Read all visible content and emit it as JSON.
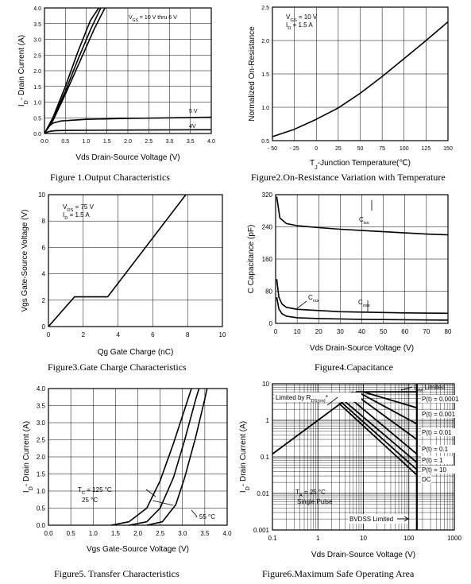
{
  "captions": {
    "f1": "Figure 1.Output Characteristics",
    "f2": "Figure2.On-Resistance Variation with Temperature",
    "f3": "Figure3.Gate Charge Characteristics",
    "f4": "Figure4.Capacitance",
    "f5": "Figure5. Transfer Characteristics",
    "f6": "Figure6.Maximum Safe Operating Area"
  },
  "chart_data": [
    {
      "id": "f1",
      "type": "line",
      "xlabel": "Vds Drain-Source Voltage (V)",
      "ylabel": "I_D- Drain Current (A)",
      "xlim": [
        0,
        4
      ],
      "ylim": [
        0,
        4
      ],
      "xticks": [
        "0.0",
        "0.5",
        "1.0",
        "1.5",
        "2.0",
        "2.5",
        "3.0",
        "3.5",
        "4.0"
      ],
      "yticks": [
        "0.0",
        "0.5",
        "1.0",
        "1.5",
        "2.0",
        "2.5",
        "3.0",
        "3.5",
        "4.0"
      ],
      "annotations": [
        "V_GS = 10 V thru 6 V",
        "5 V",
        "4V"
      ],
      "series": [
        {
          "name": "V_GS = 10 V thru 6 V",
          "points": [
            [
              0,
              0
            ],
            [
              0.2,
              0.5
            ],
            [
              0.5,
              1.5
            ],
            [
              0.8,
              2.6
            ],
            [
              1.1,
              3.6
            ],
            [
              1.3,
              4.0
            ]
          ]
        },
        {
          "points": [
            [
              0,
              0
            ],
            [
              0.2,
              0.45
            ],
            [
              0.5,
              1.35
            ],
            [
              0.8,
              2.35
            ],
            [
              1.1,
              3.3
            ],
            [
              1.35,
              4.0
            ]
          ]
        },
        {
          "points": [
            [
              0,
              0
            ],
            [
              0.2,
              0.4
            ],
            [
              0.5,
              1.25
            ],
            [
              0.9,
              2.45
            ],
            [
              1.2,
              3.35
            ],
            [
              1.45,
              4.0
            ]
          ]
        },
        {
          "name": "5 V",
          "points": [
            [
              0,
              0
            ],
            [
              0.1,
              0.22
            ],
            [
              0.2,
              0.33
            ],
            [
              0.4,
              0.4
            ],
            [
              1.0,
              0.45
            ],
            [
              2.0,
              0.48
            ],
            [
              3.0,
              0.5
            ],
            [
              4.0,
              0.52
            ]
          ]
        },
        {
          "name": "4V",
          "points": [
            [
              0,
              0
            ],
            [
              0.1,
              0.06
            ],
            [
              0.25,
              0.09
            ],
            [
              0.6,
              0.1
            ],
            [
              2.0,
              0.11
            ],
            [
              4.0,
              0.12
            ]
          ]
        }
      ]
    },
    {
      "id": "f2",
      "type": "line",
      "xlabel": "T_J-Junction Temperature(℃)",
      "ylabel": "Normalized On-Resistance",
      "xlim": [
        -50,
        150
      ],
      "ylim": [
        0.5,
        2.5
      ],
      "xticks": [
        "- 50",
        "- 25",
        "0",
        "25",
        "50",
        "75",
        "100",
        "125",
        "150"
      ],
      "yticks": [
        "0.5",
        "1.0",
        "1.5",
        "2.0",
        "2.5"
      ],
      "annotations": [
        "V_GS = 10 V",
        "I_D = 1.5 A"
      ],
      "series": [
        {
          "points": [
            [
              -50,
              0.56
            ],
            [
              -25,
              0.67
            ],
            [
              0,
              0.82
            ],
            [
              25,
              0.99
            ],
            [
              50,
              1.21
            ],
            [
              75,
              1.46
            ],
            [
              100,
              1.73
            ],
            [
              125,
              2.0
            ],
            [
              150,
              2.28
            ]
          ]
        }
      ]
    },
    {
      "id": "f3",
      "type": "line",
      "xlabel": "Qg Gate Charge (nC)",
      "ylabel": "Vgs Gate-Source Voltage (V)",
      "xlim": [
        0,
        10
      ],
      "ylim": [
        0,
        10
      ],
      "xticks": [
        "0",
        "2",
        "4",
        "6",
        "8",
        "10"
      ],
      "yticks": [
        "0",
        "2",
        "4",
        "6",
        "8",
        "10"
      ],
      "annotations": [
        "V_DS = 75 V",
        "I_D = 1.5 A"
      ],
      "series": [
        {
          "points": [
            [
              0,
              0
            ],
            [
              1.5,
              2.25
            ],
            [
              3.4,
              2.25
            ],
            [
              7.9,
              10
            ]
          ]
        }
      ]
    },
    {
      "id": "f4",
      "type": "line",
      "xlabel": "Vds Drain-Source Voltage (V)",
      "ylabel": "C Capacitance (pF)",
      "xlim": [
        0,
        80
      ],
      "ylim": [
        0,
        320
      ],
      "xticks": [
        "0",
        "10",
        "20",
        "30",
        "40",
        "50",
        "60",
        "70",
        "80"
      ],
      "yticks": [
        "0",
        "80",
        "160",
        "240",
        "320"
      ],
      "annotations": [
        "C_iss",
        "C_rss",
        "C_oss"
      ],
      "series": [
        {
          "name": "C_iss",
          "points": [
            [
              0.5,
              315
            ],
            [
              2,
              262
            ],
            [
              5,
              248
            ],
            [
              10,
              243
            ],
            [
              20,
              238
            ],
            [
              30,
              234
            ],
            [
              40,
              231
            ],
            [
              50,
              228
            ],
            [
              60,
              225
            ],
            [
              70,
              222
            ],
            [
              80,
              220
            ]
          ]
        },
        {
          "name": "C_oss",
          "points": [
            [
              0.5,
              110
            ],
            [
              1.5,
              65
            ],
            [
              3,
              48
            ],
            [
              5,
              40
            ],
            [
              10,
              35
            ],
            [
              20,
              32
            ],
            [
              30,
              29
            ],
            [
              40,
              28
            ],
            [
              60,
              26
            ],
            [
              80,
              25
            ]
          ]
        },
        {
          "name": "C_rss",
          "points": [
            [
              0.5,
              65
            ],
            [
              1.5,
              36
            ],
            [
              3,
              24
            ],
            [
              5,
              18
            ],
            [
              10,
              14
            ],
            [
              20,
              12
            ],
            [
              40,
              10
            ],
            [
              60,
              9
            ],
            [
              80,
              8
            ]
          ]
        }
      ]
    },
    {
      "id": "f5",
      "type": "line",
      "xlabel": "Vgs Gate-Source Voltage (V)",
      "ylabel": "I_D- Drain Current (A)",
      "xlim": [
        0,
        4
      ],
      "ylim": [
        0,
        4
      ],
      "xticks": [
        "0.0",
        "0.5",
        "1.0",
        "1.5",
        "2.0",
        "2.5",
        "3.0",
        "3.5",
        "4.0"
      ],
      "yticks": [
        "0.0",
        "0.5",
        "1.0",
        "1.5",
        "2.0",
        "2.5",
        "3.0",
        "3.5",
        "4.0"
      ],
      "annotations": [
        "T_C = 125 °C",
        "25 °C",
        "- 55 °C"
      ],
      "series": [
        {
          "name": "125 °C",
          "points": [
            [
              1.4,
              0
            ],
            [
              1.8,
              0.1
            ],
            [
              2.2,
              0.5
            ],
            [
              2.5,
              1.3
            ],
            [
              2.8,
              2.4
            ],
            [
              3.1,
              3.6
            ],
            [
              3.2,
              4.0
            ]
          ]
        },
        {
          "name": "25 °C",
          "points": [
            [
              1.8,
              0
            ],
            [
              2.2,
              0.1
            ],
            [
              2.5,
              0.5
            ],
            [
              2.8,
              1.4
            ],
            [
              3.05,
              2.5
            ],
            [
              3.3,
              3.7
            ],
            [
              3.37,
              4.0
            ]
          ]
        },
        {
          "name": "- 55 °C",
          "points": [
            [
              2.2,
              0
            ],
            [
              2.55,
              0.1
            ],
            [
              2.85,
              0.6
            ],
            [
              3.05,
              1.4
            ],
            [
              3.3,
              2.6
            ],
            [
              3.5,
              3.7
            ],
            [
              3.55,
              4.0
            ]
          ]
        }
      ]
    },
    {
      "id": "f6",
      "type": "line",
      "xscale": "log",
      "yscale": "log",
      "xlabel": "Vds Drain-Source Voltage (V)",
      "ylabel": "I_D- Drain Current (A)",
      "xlim": [
        0.1,
        1000
      ],
      "ylim": [
        0.001,
        10
      ],
      "xticks": [
        "0.1",
        "1",
        "10",
        "100",
        "1000"
      ],
      "yticks": [
        "0.001",
        "0.01",
        "0.1",
        "1",
        "10"
      ],
      "annotations": [
        "I_DM Limited",
        "Limited by R_DS(on)*",
        "T_A = 25 °C",
        "Single Pulse",
        "BVDSS Limited"
      ],
      "series": [
        {
          "name": "Limited by R_DS(on)*",
          "points": [
            [
              0.1,
              0.12
            ],
            [
              7,
              6
            ]
          ]
        },
        {
          "name": "I_DM Limited",
          "points": [
            [
              7,
              6
            ],
            [
              150,
              6
            ]
          ]
        },
        {
          "name": "P(t) = 0.0001",
          "points": [
            [
              10,
              6
            ],
            [
              150,
              2.2
            ]
          ]
        },
        {
          "name": "P(t) = 0.001",
          "points": [
            [
              7.5,
              6
            ],
            [
              150,
              0.8
            ]
          ]
        },
        {
          "name": "P(t) = 0.01",
          "points": [
            [
              5.5,
              6
            ],
            [
              150,
              0.3
            ]
          ]
        },
        {
          "name": "P(t) = 0.1",
          "points": [
            [
              4.5,
              4.6
            ],
            [
              150,
              0.12
            ]
          ]
        },
        {
          "name": "P(t) = 1",
          "points": [
            [
              3.6,
              3.6
            ],
            [
              150,
              0.07
            ]
          ]
        },
        {
          "name": "P(t) = 10",
          "points": [
            [
              3.2,
              3.2
            ],
            [
              150,
              0.045
            ]
          ]
        },
        {
          "name": "DC",
          "points": [
            [
              2.9,
              2.9
            ],
            [
              150,
              0.032
            ]
          ]
        },
        {
          "name": "BVDSS Limited",
          "points": [
            [
              150,
              0.001
            ],
            [
              150,
              10
            ]
          ]
        }
      ]
    }
  ]
}
